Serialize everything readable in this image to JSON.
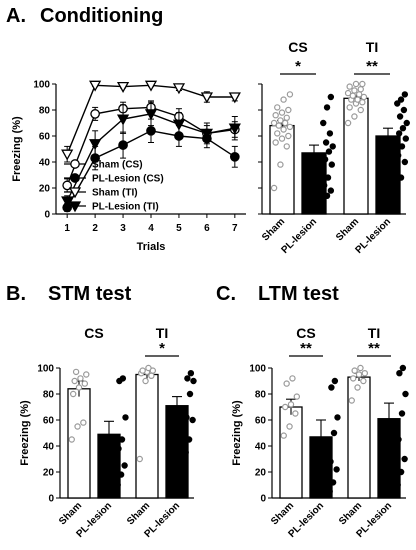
{
  "panels": {
    "A": {
      "letter": "A.",
      "title": "Conditioning"
    },
    "B": {
      "letter": "B.",
      "title": "STM test"
    },
    "C": {
      "letter": "C.",
      "title": "LTM test"
    }
  },
  "chart_data": [
    {
      "id": "A-line",
      "type": "line",
      "xlabel": "Trials",
      "ylabel": "Freezing (%)",
      "x": [
        1,
        2,
        3,
        4,
        5,
        6,
        7
      ],
      "xlim": [
        0.6,
        7.4
      ],
      "ylim": [
        0,
        100
      ],
      "yticks": [
        0,
        20,
        40,
        60,
        80,
        100
      ],
      "legend_position": "lower-left",
      "series": [
        {
          "name": "Sham (CS)",
          "marker": "circle-open",
          "values": [
            22,
            77,
            81,
            82,
            75,
            62,
            65
          ],
          "errors": [
            5,
            5,
            5,
            5,
            6,
            6,
            6
          ]
        },
        {
          "name": "PL-Lesion (CS)",
          "marker": "circle-filled",
          "values": [
            5,
            43,
            53,
            64,
            60,
            58,
            44
          ],
          "errors": [
            3,
            9,
            10,
            9,
            8,
            7,
            8
          ]
        },
        {
          "name": "Sham (TI)",
          "marker": "triangle-down-open",
          "values": [
            46,
            99,
            98,
            99,
            97,
            90,
            90
          ],
          "errors": [
            6,
            1,
            1,
            1,
            2,
            4,
            3
          ]
        },
        {
          "name": "PL-Lesion (TI)",
          "marker": "triangle-down-filled",
          "values": [
            10,
            54,
            73,
            77,
            69,
            62,
            66
          ],
          "errors": [
            4,
            10,
            11,
            9,
            9,
            8,
            9
          ]
        }
      ]
    },
    {
      "id": "A-bar",
      "type": "bar",
      "ylim": [
        0,
        100
      ],
      "groups": [
        {
          "label": "CS",
          "sig": "*",
          "bars": [
            {
              "category": "Sham",
              "value": 68,
              "error": 4,
              "fill": "#ffffff",
              "points": [
                20,
                38,
                52,
                55,
                58,
                60,
                62,
                65,
                67,
                68,
                70,
                70,
                72,
                74,
                76,
                78,
                80,
                82,
                88,
                92
              ]
            },
            {
              "category": "PL-lesion",
              "value": 47,
              "error": 6,
              "fill": "#000000",
              "points": [
                8,
                14,
                18,
                22,
                28,
                38,
                42,
                48,
                52,
                55,
                62,
                70,
                82,
                90
              ]
            }
          ]
        },
        {
          "label": "TI",
          "sig": "**",
          "bars": [
            {
              "category": "Sham",
              "value": 89,
              "error": 2,
              "fill": "#ffffff",
              "points": [
                70,
                75,
                80,
                82,
                85,
                86,
                88,
                88,
                90,
                91,
                92,
                93,
                95,
                96,
                98,
                100,
                100
              ]
            },
            {
              "category": "PL-lesion",
              "value": 60,
              "error": 6,
              "fill": "#000000",
              "points": [
                10,
                28,
                40,
                45,
                52,
                58,
                62,
                66,
                70,
                75,
                80,
                85,
                88,
                92
              ]
            }
          ]
        }
      ]
    },
    {
      "id": "B-bar",
      "type": "bar",
      "ylabel": "Freezing (%)",
      "ylim": [
        0,
        100
      ],
      "yticks": [
        0,
        20,
        40,
        60,
        80,
        100
      ],
      "groups": [
        {
          "label": "CS",
          "sig": "",
          "bars": [
            {
              "category": "Sham",
              "value": 84,
              "error": 6,
              "fill": "#ffffff",
              "points": [
                45,
                55,
                58,
                80,
                85,
                88,
                90,
                92,
                95,
                97
              ]
            },
            {
              "category": "PL-lesion",
              "value": 49,
              "error": 10,
              "fill": "#000000",
              "points": [
                10,
                18,
                25,
                38,
                45,
                62,
                90,
                92
              ]
            }
          ]
        },
        {
          "label": "TI",
          "sig": "*",
          "bars": [
            {
              "category": "Sham",
              "value": 95,
              "error": 3,
              "fill": "#ffffff",
              "points": [
                30,
                90,
                94,
                96,
                97,
                98,
                98,
                100
              ]
            },
            {
              "category": "PL-lesion",
              "value": 71,
              "error": 7,
              "fill": "#000000",
              "points": [
                35,
                45,
                60,
                62,
                80,
                90,
                92,
                96
              ]
            }
          ]
        }
      ]
    },
    {
      "id": "C-bar",
      "type": "bar",
      "ylabel": "Freezing (%)",
      "ylim": [
        0,
        100
      ],
      "yticks": [
        0,
        20,
        40,
        60,
        80,
        100
      ],
      "groups": [
        {
          "label": "CS",
          "sig": "**",
          "bars": [
            {
              "category": "Sham",
              "value": 70,
              "error": 6,
              "fill": "#ffffff",
              "points": [
                48,
                55,
                65,
                70,
                72,
                78,
                88,
                92
              ]
            },
            {
              "category": "PL-lesion",
              "value": 47,
              "error": 13,
              "fill": "#000000",
              "points": [
                5,
                12,
                22,
                28,
                50,
                62,
                85,
                90
              ]
            }
          ]
        },
        {
          "label": "TI",
          "sig": "**",
          "bars": [
            {
              "category": "Sham",
              "value": 93,
              "error": 3,
              "fill": "#ffffff",
              "points": [
                75,
                85,
                90,
                92,
                95,
                96,
                98,
                100
              ]
            },
            {
              "category": "PL-lesion",
              "value": 61,
              "error": 12,
              "fill": "#000000",
              "points": [
                10,
                20,
                30,
                45,
                65,
                80,
                96,
                100
              ]
            }
          ]
        }
      ]
    }
  ]
}
